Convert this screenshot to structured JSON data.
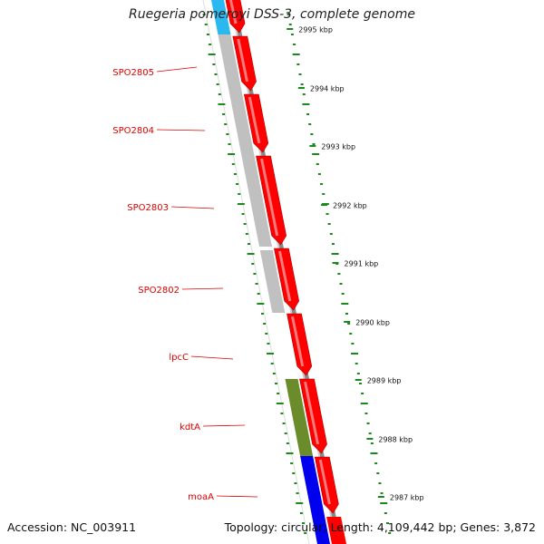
{
  "title": "Ruegeria pomeroyi DSS-3, complete genome",
  "accession": "Accession: NC_003911",
  "topology": "Topology: circular; Length: 4,109,442 bp; Genes: 3,872",
  "kbp_labels": [
    "2995 kbp",
    "2994 kbp",
    "2993 kbp",
    "2992 kbp",
    "2991 kbp",
    "2990 kbp",
    "2989 kbp",
    "2988 kbp",
    "2987 kbp"
  ],
  "gene_labels": [
    "SPO2805",
    "SPO2804",
    "SPO2803",
    "SPO2802",
    "lpcC",
    "kdtA",
    "moaA"
  ],
  "colors": {
    "forward_gene": "#ff0000",
    "cog_gray": "#c0c0c0",
    "cog_cyan": "#2bb8f0",
    "cog_olive": "#6b8c2a",
    "cog_blue": "#0000ee",
    "backbone": "#8a8a8a",
    "ticks": "#1a8a1a",
    "gene_label": "#dd0000"
  }
}
